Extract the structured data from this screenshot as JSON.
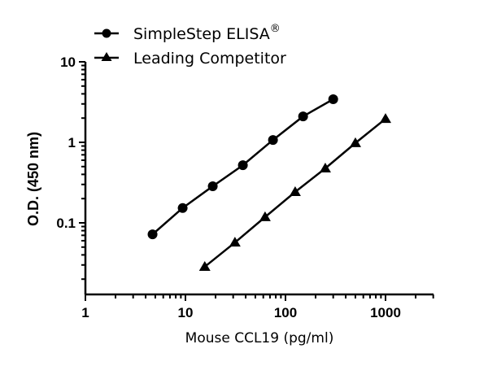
{
  "chart_data": {
    "type": "line",
    "title": "",
    "xlabel": "Mouse CCL19 (pg/ml)",
    "ylabel": "O.D. (450 nm)",
    "xscale": "log",
    "yscale": "log",
    "xlim": [
      1,
      3000
    ],
    "ylim": [
      0.013,
      10
    ],
    "xticks": [
      1,
      10,
      100,
      1000
    ],
    "xtick_labels": [
      "1",
      "10",
      "100",
      "1000"
    ],
    "yticks": [
      0.1,
      1,
      10
    ],
    "ytick_labels": [
      "0.1",
      "1",
      "10"
    ],
    "grid": false,
    "legend_position": "top",
    "series": [
      {
        "name": "SimpleStep ELISA",
        "name_superscript": "®",
        "marker": "circle",
        "color": "#000000",
        "x": [
          4.69,
          9.38,
          18.75,
          37.5,
          75,
          150,
          300
        ],
        "y": [
          0.072,
          0.153,
          0.285,
          0.52,
          1.07,
          2.1,
          3.43
        ]
      },
      {
        "name": "Leading Competitor",
        "marker": "triangle",
        "color": "#000000",
        "x": [
          15.6,
          31.25,
          62.5,
          125,
          250,
          500,
          1000
        ],
        "y": [
          0.0285,
          0.057,
          0.118,
          0.242,
          0.475,
          0.98,
          1.96
        ]
      }
    ]
  }
}
